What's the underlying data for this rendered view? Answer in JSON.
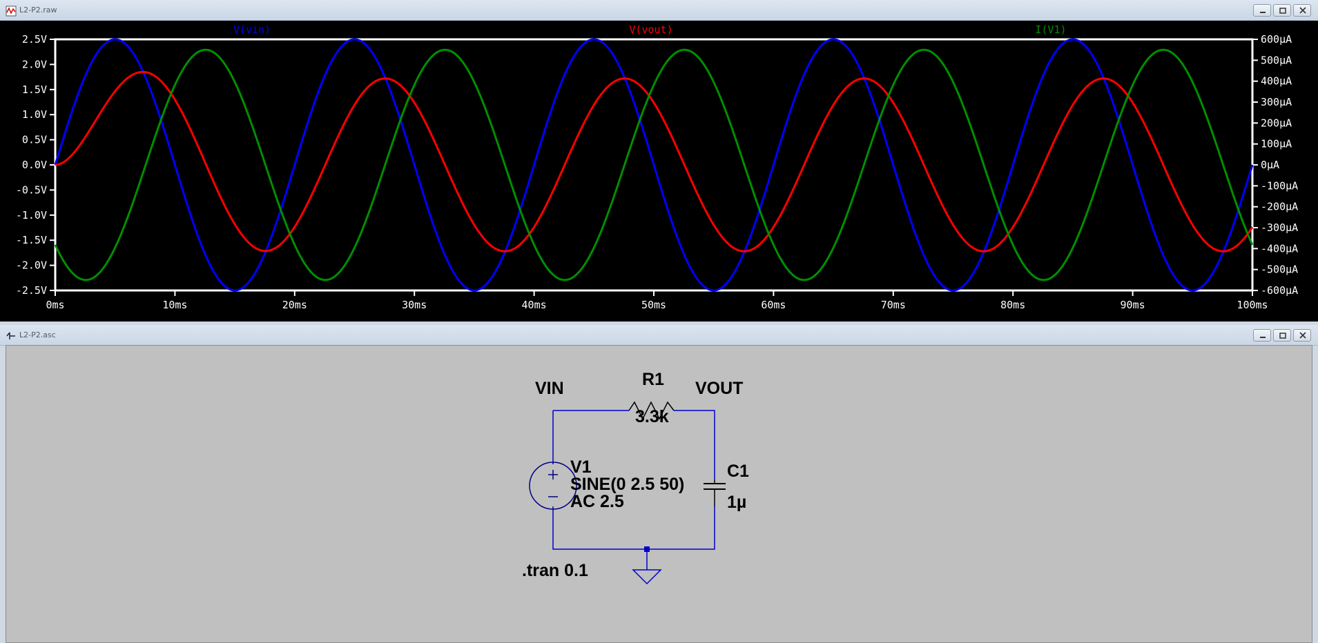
{
  "plot_window": {
    "title": "L2-P2.raw",
    "icon": "waveform-icon"
  },
  "schematic_window": {
    "title": "L2-P2.asc",
    "icon": "schematic-icon"
  },
  "colors": {
    "vin": "#0000ff",
    "vout": "#ff0000",
    "iv1": "#008f00",
    "plot_bg": "#000000",
    "axis": "#ffffff",
    "wire": "#0000cc",
    "schematic_bg": "#c0c0c0"
  },
  "chart_data": {
    "type": "line",
    "xlim": [
      0,
      100
    ],
    "ylim_left": [
      -2.5,
      2.5
    ],
    "ylim_right": [
      -600,
      600
    ],
    "x_ticks": [
      "0ms",
      "10ms",
      "20ms",
      "30ms",
      "40ms",
      "50ms",
      "60ms",
      "70ms",
      "80ms",
      "90ms",
      "100ms"
    ],
    "y_left_ticks": [
      "2.5V",
      "2.0V",
      "1.5V",
      "1.0V",
      "0.5V",
      "0.0V",
      "-0.5V",
      "-1.0V",
      "-1.5V",
      "-2.0V",
      "-2.5V"
    ],
    "y_right_ticks": [
      "600µA",
      "500µA",
      "400µA",
      "300µA",
      "200µA",
      "100µA",
      "0µA",
      "-100µA",
      "-200µA",
      "-300µA",
      "-400µA",
      "-500µA",
      "-600µA"
    ],
    "legend": "top",
    "series": [
      {
        "name": "V(vin)",
        "axis": "left",
        "amplitude": 2.5,
        "frequency_hz": 50,
        "phase_deg": 0,
        "color": "#0000ff"
      },
      {
        "name": "V(vout)",
        "axis": "left",
        "amplitude": 1.72,
        "frequency_hz": 50,
        "phase_deg": -46,
        "transient_tau_ms": 3.3,
        "color": "#ff0000"
      },
      {
        "name": "I(V1)",
        "axis": "right",
        "amplitude": 550,
        "frequency_hz": 50,
        "phase_deg": 224,
        "color": "#008f00"
      }
    ]
  },
  "schematic": {
    "net_vin": "VIN",
    "net_vout": "VOUT",
    "r1_name": "R1",
    "r1_value": "3.3k",
    "v1_name": "V1",
    "v1_value": "SINE(0 2.5 50)",
    "v1_ac": "AC 2.5",
    "c1_name": "C1",
    "c1_value": "1µ",
    "directive": ".tran 0.1"
  }
}
